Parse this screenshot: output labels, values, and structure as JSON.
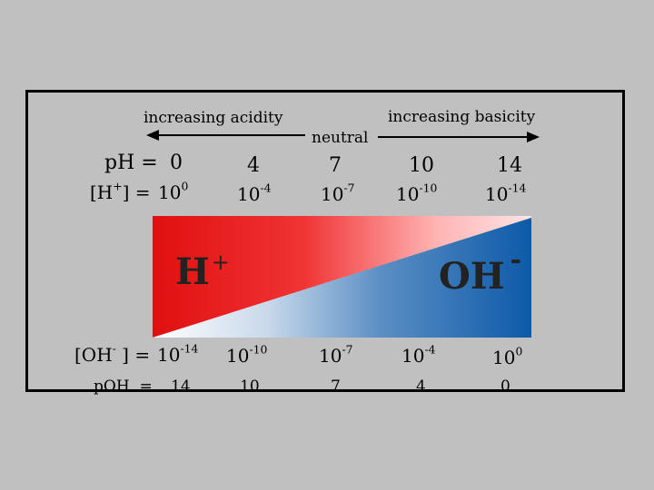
{
  "labels": {
    "acidity": "increasing acidity",
    "neutral": "neutral",
    "basicity": "increasing basicity"
  },
  "ph_row": {
    "label": "pH =",
    "values": [
      "0",
      "4",
      "7",
      "10",
      "14"
    ]
  },
  "h_row": {
    "label": "[H+] =",
    "base": "10",
    "exponents": [
      "0",
      "-4",
      "-7",
      "-10",
      "-14"
    ]
  },
  "oh_row": {
    "label": "[OH- ] =",
    "base": "10",
    "exponents": [
      "-14",
      "-10",
      "-7",
      "-4",
      "0"
    ]
  },
  "poh_row": {
    "label": "pOH  =",
    "values": [
      "14",
      "10",
      "7",
      "4",
      "0"
    ]
  },
  "ions": {
    "h_base": "H",
    "h_charge": "+",
    "oh_base": "OH",
    "oh_charge": "-"
  },
  "colors": {
    "acid": "#e01010",
    "neutral": "#f2f2f2",
    "base": "#1060b0"
  }
}
